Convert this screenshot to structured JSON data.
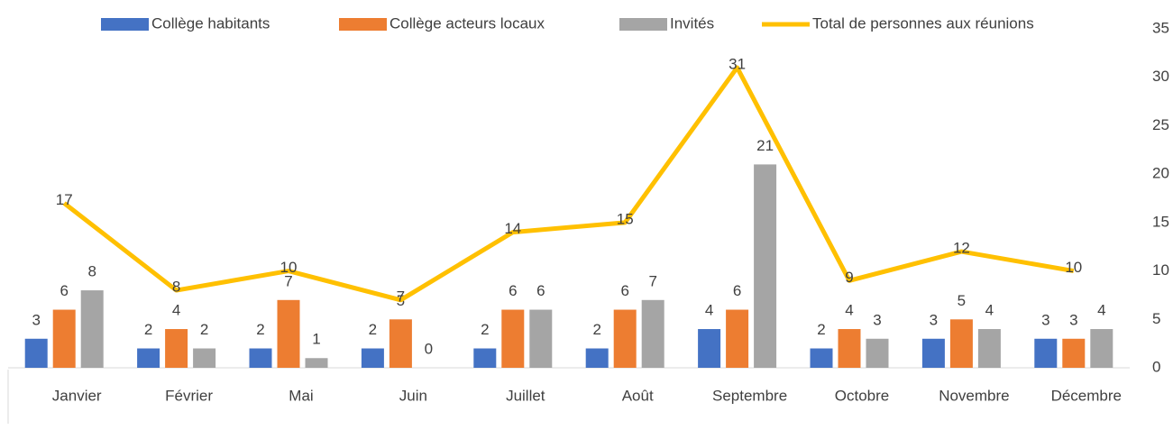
{
  "chart_data": {
    "type": "bar",
    "categories": [
      "Janvier",
      "Février",
      "Mai",
      "Juin",
      "Juillet",
      "Août",
      "Septembre",
      "Octobre",
      "Novembre",
      "Décembre"
    ],
    "series": [
      {
        "name": "Collège habitants",
        "color": "#4472c4",
        "values": [
          3,
          2,
          2,
          2,
          2,
          2,
          4,
          2,
          3,
          3
        ]
      },
      {
        "name": "Collège acteurs locaux",
        "color": "#ed7d31",
        "values": [
          6,
          4,
          7,
          5,
          6,
          6,
          6,
          4,
          5,
          3
        ]
      },
      {
        "name": "Invités",
        "color": "#a5a5a5",
        "values": [
          8,
          2,
          1,
          0,
          6,
          7,
          21,
          3,
          4,
          4
        ]
      },
      {
        "name": "Total de personnes aux réunions",
        "color": "#ffc000",
        "type": "line",
        "values": [
          17,
          8,
          10,
          7,
          14,
          15,
          31,
          9,
          12,
          10
        ]
      }
    ],
    "ylim": [
      0,
      35
    ],
    "yticks": [
      0,
      5,
      10,
      15,
      20,
      25,
      30,
      35
    ],
    "y_axis_side": "right",
    "legend": "top",
    "grid": false
  }
}
